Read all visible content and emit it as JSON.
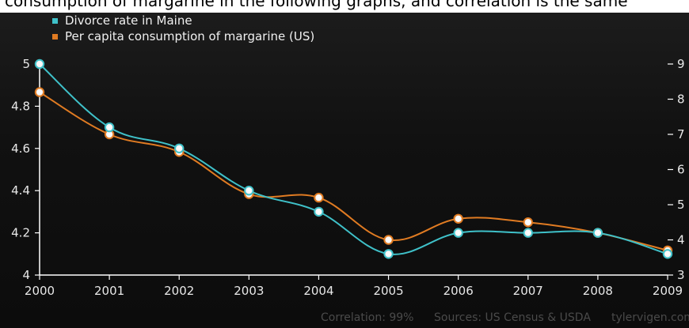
{
  "header": {
    "caption": "consumption of margarine in the following graphs, and correlation is the same"
  },
  "chart_data": {
    "type": "line",
    "x": [
      "2000",
      "2001",
      "2002",
      "2003",
      "2004",
      "2005",
      "2006",
      "2007",
      "2008",
      "2009"
    ],
    "series": [
      {
        "name": "Divorce rate in Maine",
        "color": "#3fc1c9",
        "axis": "left",
        "values": [
          5.0,
          4.7,
          4.6,
          4.4,
          4.3,
          4.1,
          4.2,
          4.2,
          4.2,
          4.1
        ]
      },
      {
        "name": "Per capita consumption of margarine (US)",
        "color": "#e07b22",
        "axis": "right",
        "values": [
          8.2,
          7.0,
          6.5,
          5.3,
          5.2,
          4.0,
          4.6,
          4.5,
          4.2,
          3.7
        ]
      }
    ],
    "left_axis": {
      "range": [
        4,
        5
      ],
      "ticks": [
        "4",
        "4.2",
        "4.4",
        "4.6",
        "4.8",
        "5"
      ]
    },
    "right_axis": {
      "range": [
        3,
        9
      ],
      "ticks": [
        "3",
        "4",
        "5",
        "6",
        "7",
        "8",
        "9"
      ]
    },
    "grid": false,
    "legend": "top-left"
  },
  "footer": {
    "correlation": "Correlation: 99%",
    "sources": "Sources: US Census & USDA",
    "site": "tylervigen.com"
  }
}
